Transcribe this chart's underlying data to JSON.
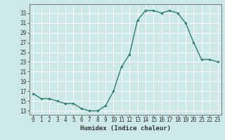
{
  "x": [
    0,
    1,
    2,
    3,
    4,
    5,
    6,
    7,
    8,
    9,
    10,
    11,
    12,
    13,
    14,
    15,
    16,
    17,
    18,
    19,
    20,
    21,
    22,
    23
  ],
  "y": [
    16.5,
    15.5,
    15.5,
    15.0,
    14.5,
    14.5,
    13.5,
    13.0,
    13.0,
    14.0,
    17.0,
    22.0,
    24.5,
    31.5,
    33.5,
    33.5,
    33.0,
    33.5,
    33.0,
    31.0,
    27.0,
    23.5,
    23.5,
    23.0
  ],
  "line_color": "#2e7d6e",
  "marker": "D",
  "marker_size": 1.8,
  "bg_color": "#cce8e8",
  "grid_color": "#ffffff",
  "xlabel": "Humidex (Indice chaleur)",
  "ytick_min": 13,
  "ytick_max": 33,
  "ytick_step": 2,
  "xtick_min": 0,
  "xtick_max": 23,
  "ylim_min": 12.2,
  "ylim_max": 34.8,
  "xlim_min": -0.5,
  "xlim_max": 23.5,
  "label_fontsize": 6.5,
  "tick_fontsize": 5.5
}
